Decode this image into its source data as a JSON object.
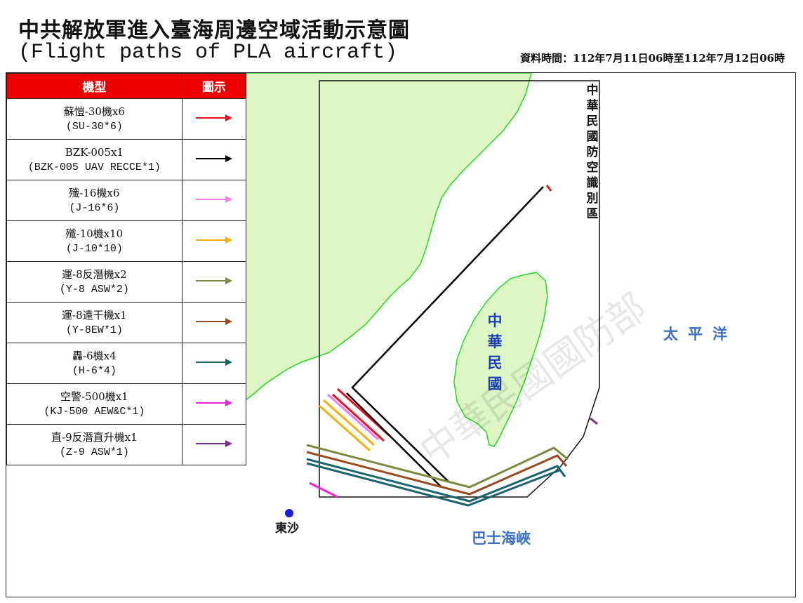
{
  "header": {
    "title_zh": "中共解放軍進入臺海周邊空域活動示意圖",
    "title_en": "(Flight paths of PLA aircraft)",
    "data_time": "資料時間：112年7月11日06時至112年7月12日06時"
  },
  "legend": {
    "col_type": "機型",
    "col_symbol": "圖示",
    "items": [
      {
        "name_zh": "蘇愷-30機x6",
        "name_en": "(SU-30*6)",
        "color": "#e8141b",
        "icon": "red-arrow-icon"
      },
      {
        "name_zh": "BZK-005x1",
        "name_en": "(BZK-005 UAV RECCE*1)",
        "color": "#000000",
        "icon": "black-arrow-icon"
      },
      {
        "name_zh": "殲-16機x6",
        "name_en": "(J-16*6)",
        "color": "#f27cf0",
        "icon": "pink-arrow-icon"
      },
      {
        "name_zh": "殲-10機x10",
        "name_en": "(J-10*10)",
        "color": "#f2b10c",
        "icon": "orange-arrow-icon"
      },
      {
        "name_zh": "運-8反潛機x2",
        "name_en": "(Y-8 ASW*2)",
        "color": "#7a8a3c",
        "icon": "olive-arrow-icon"
      },
      {
        "name_zh": "運-8遠干機x1",
        "name_en": "(Y-8EW*1)",
        "color": "#9a4a1e",
        "icon": "brown-arrow-icon"
      },
      {
        "name_zh": "轟-6機x4",
        "name_en": "(H-6*4)",
        "color": "#1a6470",
        "icon": "teal-arrow-icon"
      },
      {
        "name_zh": "空警-500機x1",
        "name_en": "(KJ-500 AEW&C*1)",
        "color": "#ee22dd",
        "icon": "magenta-arrow-icon"
      },
      {
        "name_zh": "直-9反潛直升機x1",
        "name_en": "(Z-9 ASW*1)",
        "color": "#7a2c9a",
        "icon": "purple-arrow-icon"
      }
    ]
  },
  "map": {
    "adiz_label": "中華民國防空識別區",
    "taiwan_label": "中華民國",
    "pacific_label": "太平洋",
    "bashi_label": "巴士海峽",
    "dongsha_label": "東沙",
    "watermark": "中華民國國防部",
    "land_color": "#ddf6c4",
    "coast_color": "#22dd22",
    "label_blue": "#1c3fb8",
    "label_lightblue": "#3a6fc6"
  }
}
